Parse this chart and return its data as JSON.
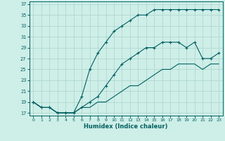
{
  "title": "",
  "xlabel": "Humidex (Indice chaleur)",
  "background_color": "#ceeee8",
  "line_color": "#006060",
  "grid_color": "#b0d8d0",
  "xlim": [
    -0.5,
    23.5
  ],
  "ylim": [
    16.5,
    37.5
  ],
  "yticks": [
    17,
    19,
    21,
    23,
    25,
    27,
    29,
    31,
    33,
    35,
    37
  ],
  "xticks": [
    0,
    1,
    2,
    3,
    4,
    5,
    6,
    7,
    8,
    9,
    10,
    11,
    12,
    13,
    14,
    15,
    16,
    17,
    18,
    19,
    20,
    21,
    22,
    23
  ],
  "series": [
    {
      "x": [
        0,
        1,
        2,
        3,
        4,
        5,
        6,
        7,
        8,
        9,
        10,
        11,
        12,
        13,
        14,
        15,
        16,
        17,
        18,
        19,
        20,
        21,
        22,
        23
      ],
      "y": [
        19,
        18,
        18,
        17,
        17,
        17,
        20,
        25,
        28,
        30,
        32,
        33,
        34,
        35,
        35,
        36,
        36,
        36,
        36,
        36,
        36,
        36,
        36,
        36
      ],
      "marker": true
    },
    {
      "x": [
        0,
        1,
        2,
        3,
        4,
        5,
        6,
        7,
        8,
        9,
        10,
        11,
        12,
        13,
        14,
        15,
        16,
        17,
        18,
        19,
        20,
        21,
        22,
        23
      ],
      "y": [
        19,
        18,
        18,
        17,
        17,
        17,
        18,
        19,
        20,
        22,
        24,
        26,
        27,
        28,
        29,
        29,
        30,
        30,
        30,
        29,
        30,
        27,
        27,
        28
      ],
      "marker": true
    },
    {
      "x": [
        0,
        1,
        2,
        3,
        4,
        5,
        6,
        7,
        8,
        9,
        10,
        11,
        12,
        13,
        14,
        15,
        16,
        17,
        18,
        19,
        20,
        21,
        22,
        23
      ],
      "y": [
        19,
        18,
        18,
        17,
        17,
        17,
        18,
        18,
        19,
        19,
        20,
        21,
        22,
        22,
        23,
        24,
        25,
        25,
        26,
        26,
        26,
        25,
        26,
        26
      ],
      "marker": false
    }
  ]
}
